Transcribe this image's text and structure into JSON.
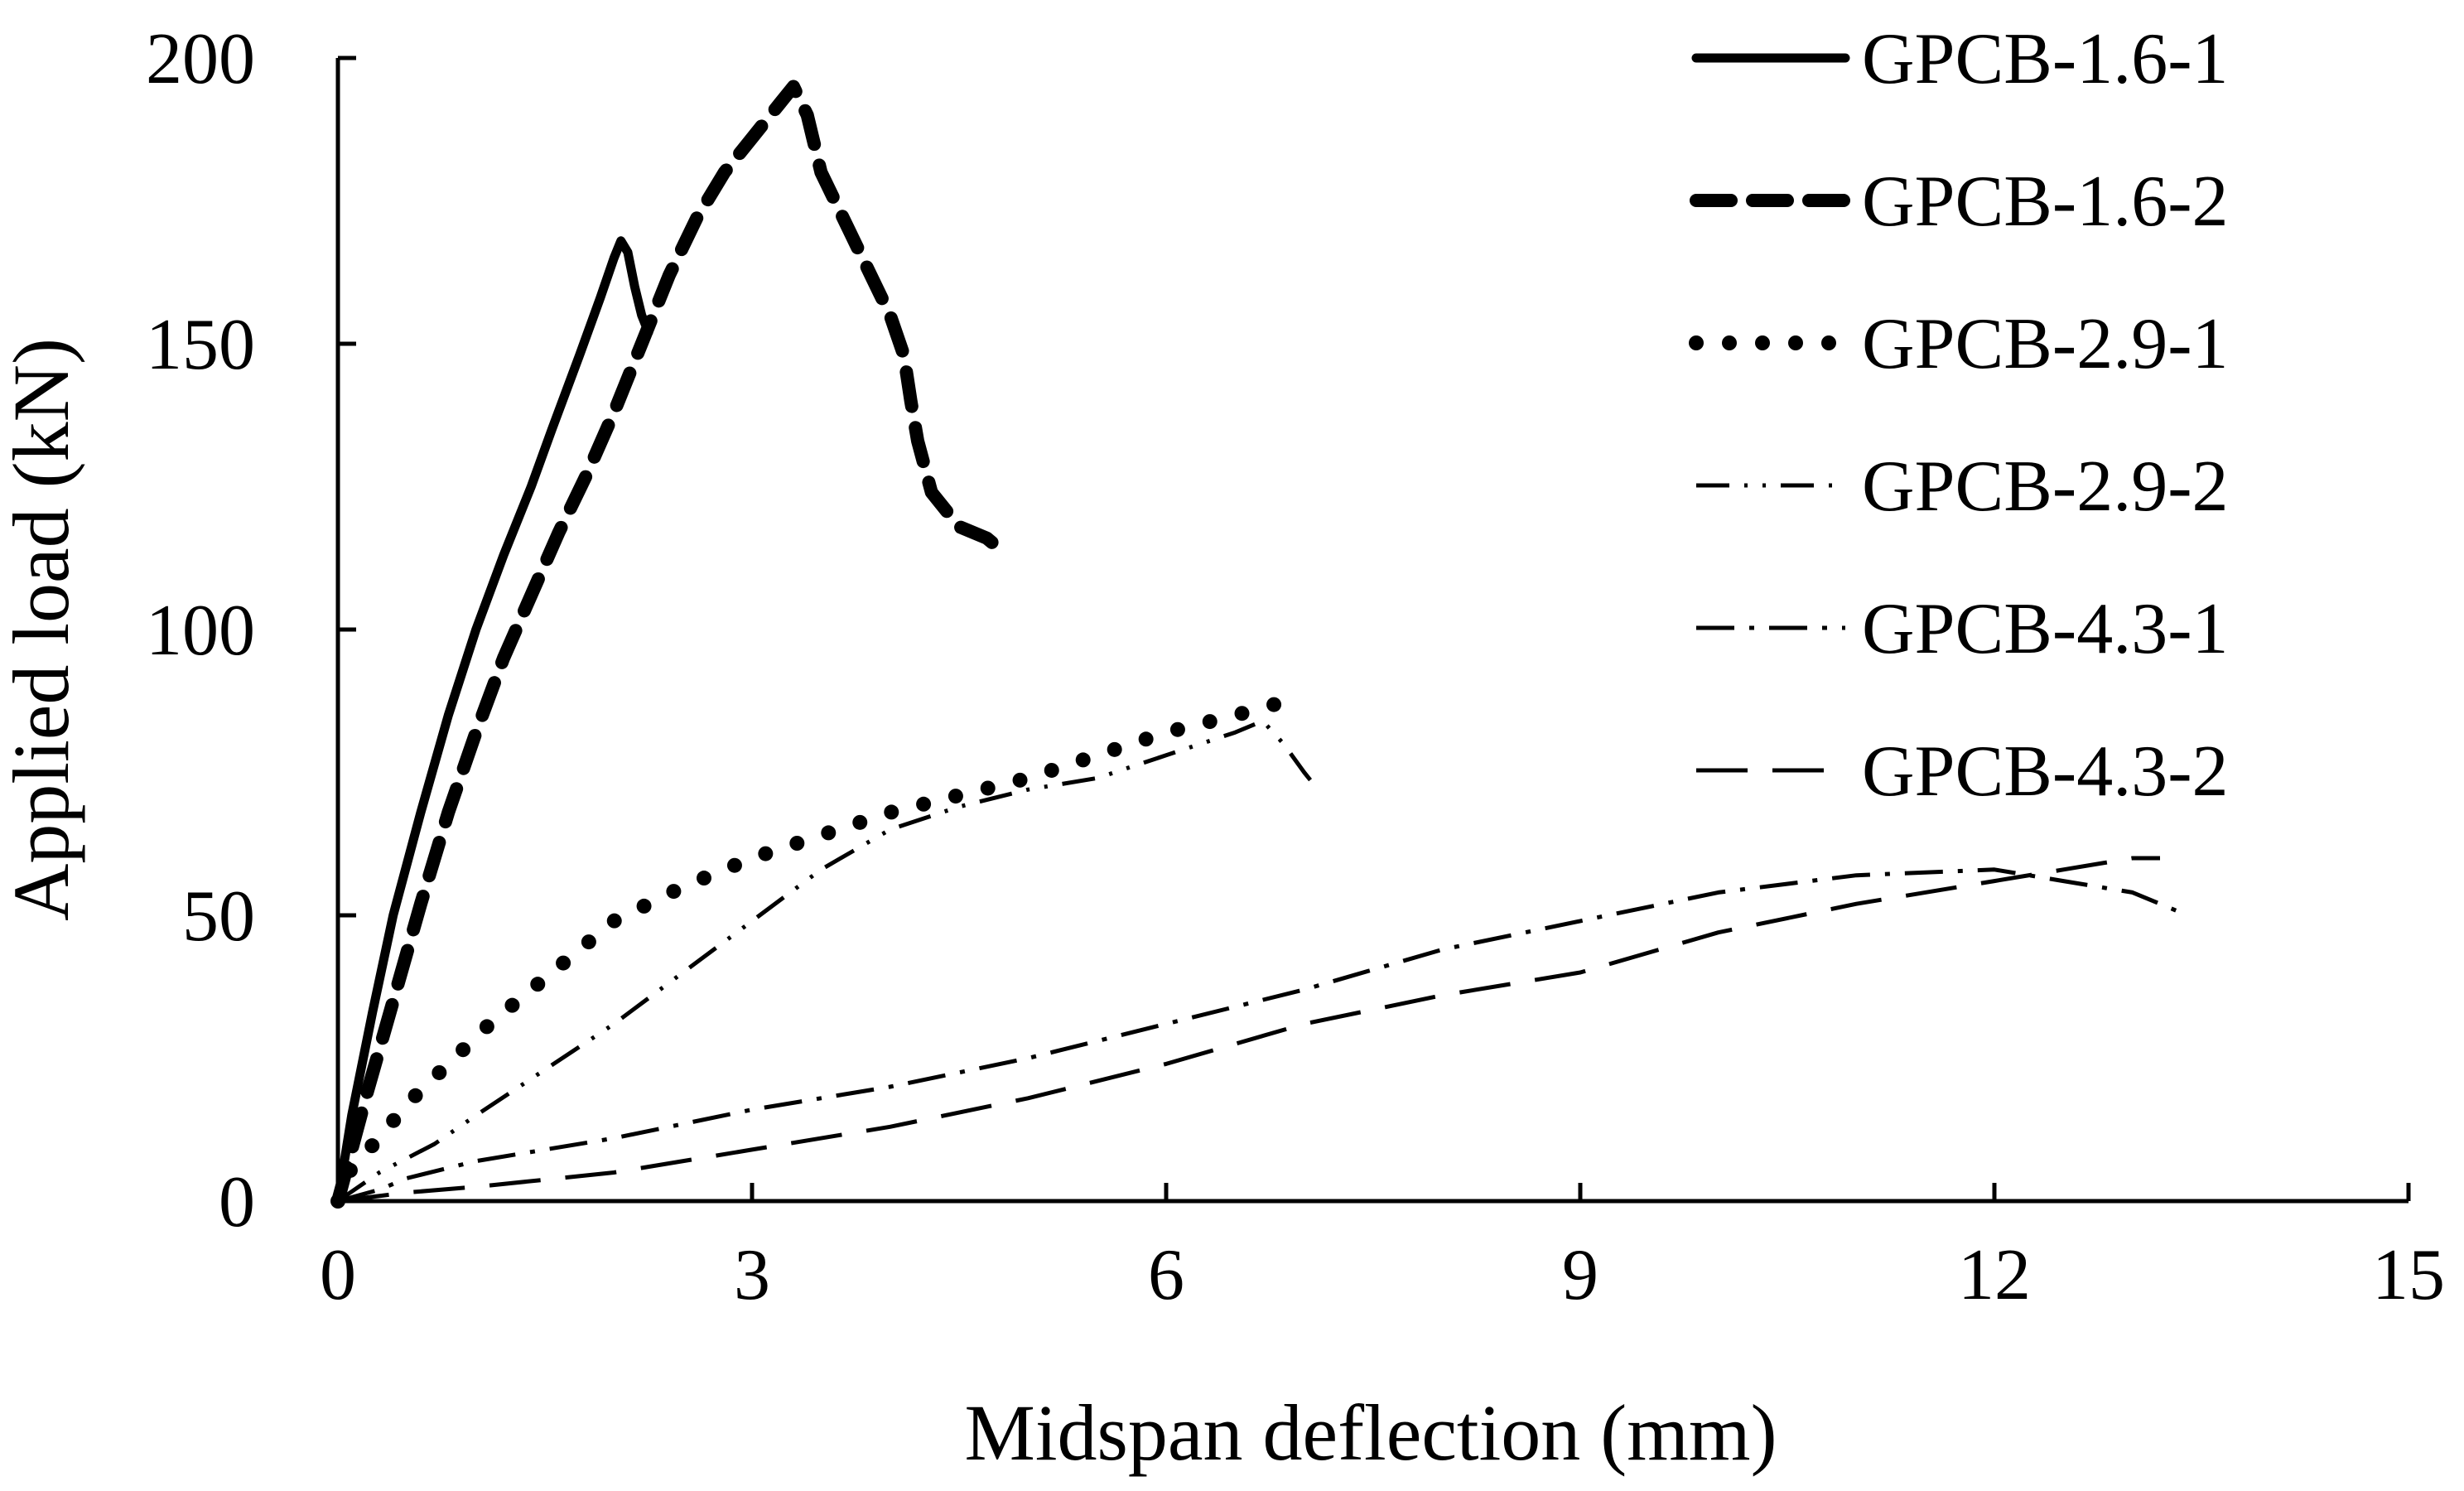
{
  "chart_data": {
    "type": "line",
    "title": "",
    "xlabel": "Midspan deflection (mm)",
    "ylabel": "Applied load (kN)",
    "xlim": [
      0,
      15
    ],
    "ylim": [
      0,
      200
    ],
    "xticks": [
      0,
      3,
      6,
      9,
      12,
      15
    ],
    "yticks": [
      0,
      50,
      100,
      150,
      200
    ],
    "xtick_labels": [
      "0",
      "3",
      "6",
      "9",
      "12",
      "15"
    ],
    "ytick_labels": [
      "0",
      "50",
      "100",
      "150",
      "200"
    ],
    "grid": false,
    "legend_position": "top-right",
    "series": [
      {
        "name": "GPCB-1.6-1",
        "style": "solid",
        "color": "#000000",
        "x": [
          0,
          0.1,
          0.25,
          0.4,
          0.6,
          0.8,
          1.0,
          1.2,
          1.4,
          1.55,
          1.75,
          1.9,
          2.0,
          2.05,
          2.1,
          2.15,
          2.2,
          2.25
        ],
        "y": [
          0,
          15,
          33,
          50,
          68,
          85,
          100,
          113,
          125,
          135,
          148,
          158,
          165,
          168,
          166,
          160,
          155,
          152
        ]
      },
      {
        "name": "GPCB-1.6-2",
        "style": "dashed",
        "color": "#000000",
        "x": [
          0,
          0.2,
          0.4,
          0.6,
          0.8,
          1.0,
          1.2,
          1.4,
          1.6,
          1.8,
          2.0,
          2.2,
          2.4,
          2.6,
          2.8,
          3.0,
          3.2,
          3.3,
          3.4,
          3.5,
          3.7,
          3.9,
          4.0,
          4.1,
          4.15,
          4.2,
          4.3,
          4.5,
          4.7,
          4.8
        ],
        "y": [
          0,
          18,
          35,
          52,
          68,
          82,
          95,
          106,
          117,
          127,
          138,
          150,
          162,
          172,
          180,
          186,
          192,
          195,
          190,
          180,
          170,
          160,
          155,
          148,
          140,
          133,
          124,
          118,
          116,
          114
        ]
      },
      {
        "name": "GPCB-2.9-1",
        "style": "dotted",
        "color": "#000000",
        "x": [
          0,
          0.1,
          0.3,
          0.5,
          0.8,
          1.1,
          1.5,
          1.8,
          2.0,
          2.5,
          3.0,
          3.5,
          4.0,
          4.5,
          5.0,
          5.5,
          6.0,
          6.5,
          6.8,
          6.9
        ],
        "y": [
          0,
          6,
          11,
          17,
          24,
          31,
          39,
          45,
          49,
          55,
          60,
          64,
          68,
          71,
          74,
          78,
          82,
          85,
          87,
          88
        ]
      },
      {
        "name": "GPCB-2.9-2",
        "style": "dash-dot-dot",
        "color": "#000000",
        "x": [
          0,
          0.3,
          0.7,
          1.0,
          1.5,
          2.0,
          2.5,
          3.0,
          3.5,
          4.0,
          4.5,
          5.0,
          5.5,
          6.0,
          6.5,
          6.7,
          6.85,
          7.0,
          7.1
        ],
        "y": [
          0,
          5,
          10,
          15,
          23,
          31,
          40,
          49,
          58,
          65,
          69,
          72,
          74,
          78,
          82,
          84,
          80,
          75,
          72
        ]
      },
      {
        "name": "GPCB-4.3-1",
        "style": "dash-dot",
        "color": "#000000",
        "x": [
          0,
          0.3,
          0.5,
          1.0,
          2.0,
          3.0,
          4.0,
          5.0,
          6.0,
          7.0,
          8.0,
          9.0,
          10.0,
          11.0,
          12.0,
          12.5,
          13.0,
          13.2,
          13.4
        ],
        "y": [
          0,
          2,
          4,
          7,
          11,
          16,
          20,
          25,
          31,
          37,
          44,
          49,
          54,
          57,
          58,
          56,
          54,
          52,
          50
        ]
      },
      {
        "name": "GPCB-4.3-2",
        "style": "long-dash",
        "color": "#000000",
        "x": [
          0,
          0.5,
          1.0,
          2.0,
          3.0,
          4.0,
          5.0,
          6.0,
          7.0,
          8.0,
          9.0,
          10.0,
          11.0,
          12.0,
          12.5,
          13.0,
          13.2
        ],
        "y": [
          0,
          1.5,
          2.5,
          5,
          9,
          13,
          18,
          24,
          31,
          36,
          40,
          47,
          52,
          56,
          58,
          60,
          60
        ]
      }
    ]
  }
}
